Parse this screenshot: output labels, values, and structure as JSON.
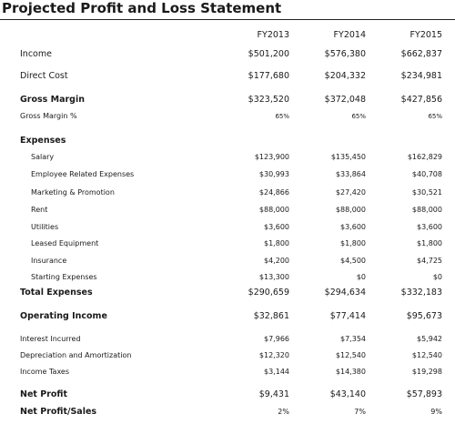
{
  "title": "Projected Profit and Loss Statement",
  "headers": [
    "FY2013",
    "FY2014",
    "FY2015"
  ],
  "rows": [
    {
      "label": "Income",
      "values": [
        "$501,200",
        "$576,380",
        "$662,837"
      ]
    },
    {
      "label": "Direct Cost",
      "values": [
        "$177,680",
        "$204,332",
        "$234,981"
      ]
    },
    {
      "label": "Gross Margin",
      "values": [
        "$323,520",
        "$372,048",
        "$427,856"
      ]
    },
    {
      "label": "Gross Margin %",
      "values": [
        "65%",
        "65%",
        "65%"
      ]
    },
    {
      "label": "Expenses",
      "values": [
        "",
        "",
        ""
      ]
    },
    {
      "label": "Salary",
      "values": [
        "$123,900",
        "$135,450",
        "$162,829"
      ]
    },
    {
      "label": "Employee Related Expenses",
      "values": [
        "$30,993",
        "$33,864",
        "$40,708"
      ]
    },
    {
      "label": "Marketing & Promotion",
      "values": [
        "$24,866",
        "$27,420",
        "$30,521"
      ]
    },
    {
      "label": "Rent",
      "values": [
        "$88,000",
        "$88,000",
        "$88,000"
      ]
    },
    {
      "label": "Utilities",
      "values": [
        "$3,600",
        "$3,600",
        "$3,600"
      ]
    },
    {
      "label": "Leased Equipment",
      "values": [
        "$1,800",
        "$1,800",
        "$1,800"
      ]
    },
    {
      "label": "Insurance",
      "values": [
        "$4,200",
        "$4,500",
        "$4,725"
      ]
    },
    {
      "label": "Starting Expenses",
      "values": [
        "$13,300",
        "$0",
        "$0"
      ]
    },
    {
      "label": "Total Expenses",
      "values": [
        "$290,659",
        "$294,634",
        "$332,183"
      ]
    },
    {
      "label": "Operating Income",
      "values": [
        "$32,861",
        "$77,414",
        "$95,673"
      ]
    },
    {
      "label": "Interest Incurred",
      "values": [
        "$7,966",
        "$7,354",
        "$5,942"
      ]
    },
    {
      "label": "Depreciation and Amortization",
      "values": [
        "$12,320",
        "$12,540",
        "$12,540"
      ]
    },
    {
      "label": "Income Taxes",
      "values": [
        "$3,144",
        "$14,380",
        "$19,298"
      ]
    },
    {
      "label": "Net Profit",
      "values": [
        "$9,431",
        "$43,140",
        "$57,893"
      ]
    },
    {
      "label": "Net Profit/Sales",
      "values": [
        "2%",
        "7%",
        "9%"
      ]
    }
  ]
}
